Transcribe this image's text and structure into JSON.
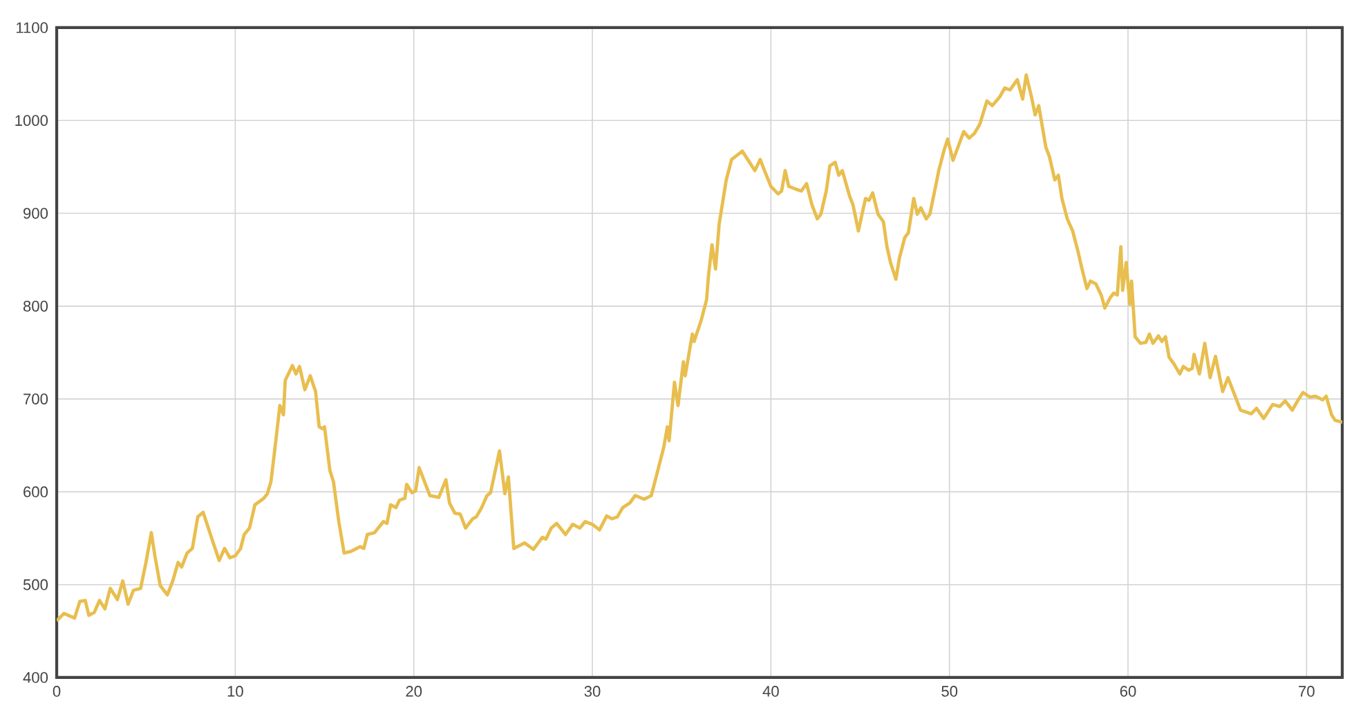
{
  "chart_data": {
    "type": "line",
    "color": "#e8be4f",
    "grid": true,
    "marker": "none",
    "line_style": "solid",
    "xlim": [
      0,
      72
    ],
    "ylim": [
      400,
      1100
    ],
    "xticks": [
      0,
      10,
      20,
      30,
      40,
      50,
      60,
      70
    ],
    "yticks": [
      400,
      500,
      600,
      700,
      800,
      900,
      1000,
      1100
    ],
    "x": [
      0.0,
      0.4,
      1.0,
      1.3,
      1.6,
      1.8,
      2.1,
      2.4,
      2.7,
      3.0,
      3.4,
      3.7,
      4.0,
      4.3,
      4.7,
      5.0,
      5.3,
      5.5,
      5.8,
      6.2,
      6.5,
      6.8,
      7.0,
      7.3,
      7.6,
      7.9,
      8.2,
      8.7,
      9.1,
      9.4,
      9.7,
      10.0,
      10.3,
      10.5,
      10.8,
      11.1,
      11.6,
      11.8,
      12.0,
      12.2,
      12.5,
      12.7,
      12.8,
      13.2,
      13.4,
      13.6,
      13.9,
      14.2,
      14.5,
      14.7,
      14.9,
      15.0,
      15.3,
      15.5,
      15.8,
      16.1,
      16.5,
      17.0,
      17.2,
      17.4,
      17.8,
      18.3,
      18.5,
      18.7,
      19.0,
      19.2,
      19.5,
      19.6,
      19.9,
      20.1,
      20.3,
      20.6,
      20.9,
      21.4,
      21.8,
      22.0,
      22.3,
      22.6,
      22.9,
      23.3,
      23.5,
      23.8,
      24.1,
      24.3,
      24.8,
      25.1,
      25.3,
      25.6,
      26.2,
      26.7,
      27.2,
      27.4,
      27.7,
      28.0,
      28.5,
      28.9,
      29.3,
      29.6,
      30.0,
      30.4,
      30.8,
      31.1,
      31.4,
      31.7,
      32.1,
      32.4,
      32.9,
      33.3,
      33.6,
      34.0,
      34.2,
      34.3,
      34.6,
      34.8,
      35.1,
      35.2,
      35.6,
      35.7,
      36.1,
      36.4,
      36.5,
      36.7,
      36.9,
      37.1,
      37.5,
      37.8,
      38.0,
      38.4,
      38.7,
      39.1,
      39.4,
      39.6,
      40.0,
      40.4,
      40.6,
      40.8,
      41.0,
      41.4,
      41.7,
      42.0,
      42.3,
      42.6,
      42.8,
      43.1,
      43.3,
      43.6,
      43.8,
      44.0,
      44.4,
      44.6,
      44.9,
      45.3,
      45.5,
      45.7,
      46.0,
      46.3,
      46.5,
      46.7,
      47.0,
      47.2,
      47.5,
      47.7,
      48.0,
      48.2,
      48.4,
      48.7,
      48.9,
      49.3,
      49.4,
      49.7,
      49.9,
      50.2,
      50.8,
      51.1,
      51.4,
      51.7,
      52.1,
      52.4,
      52.8,
      53.1,
      53.4,
      53.8,
      54.1,
      54.3,
      54.6,
      54.8,
      55.0,
      55.4,
      55.6,
      55.9,
      56.1,
      56.3,
      56.6,
      56.9,
      57.2,
      57.4,
      57.7,
      57.9,
      58.2,
      58.5,
      58.7,
      59.0,
      59.2,
      59.4,
      59.6,
      59.7,
      59.9,
      60.1,
      60.2,
      60.4,
      60.7,
      61.0,
      61.2,
      61.4,
      61.7,
      61.9,
      62.1,
      62.3,
      62.6,
      62.9,
      63.1,
      63.4,
      63.6,
      63.7,
      64.0,
      64.3,
      64.6,
      64.9,
      65.3,
      65.6,
      65.9,
      66.3,
      66.9,
      67.2,
      67.6,
      68.1,
      68.5,
      68.8,
      69.2,
      69.5,
      69.8,
      70.2,
      70.5,
      70.9,
      71.1,
      71.4,
      71.6,
      72.0
    ],
    "values": [
      461,
      469,
      464,
      482,
      483,
      467,
      470,
      483,
      474,
      496,
      484,
      504,
      479,
      494,
      496,
      524,
      556,
      531,
      499,
      489,
      504,
      524,
      519,
      534,
      539,
      573,
      578,
      549,
      526,
      539,
      529,
      531,
      539,
      554,
      561,
      586,
      593,
      598,
      611,
      643,
      693,
      683,
      720,
      736,
      727,
      735,
      710,
      725,
      708,
      670,
      668,
      670,
      623,
      611,
      568,
      534,
      536,
      541,
      539,
      554,
      556,
      568,
      566,
      586,
      583,
      591,
      593,
      608,
      599,
      601,
      626,
      611,
      596,
      594,
      613,
      588,
      577,
      576,
      561,
      571,
      573,
      583,
      596,
      599,
      644,
      598,
      616,
      539,
      545,
      538,
      551,
      549,
      561,
      566,
      554,
      565,
      561,
      568,
      565,
      559,
      574,
      571,
      573,
      583,
      588,
      596,
      592,
      596,
      618,
      648,
      670,
      655,
      718,
      693,
      740,
      725,
      770,
      762,
      785,
      807,
      832,
      866,
      840,
      888,
      936,
      958,
      961,
      967,
      958,
      946,
      958,
      948,
      929,
      921,
      924,
      946,
      929,
      926,
      924,
      932,
      909,
      894,
      899,
      924,
      951,
      955,
      941,
      946,
      919,
      909,
      881,
      916,
      914,
      922,
      899,
      891,
      864,
      847,
      829,
      852,
      874,
      879,
      916,
      899,
      906,
      894,
      899,
      936,
      946,
      968,
      980,
      957,
      988,
      981,
      986,
      996,
      1021,
      1016,
      1025,
      1035,
      1033,
      1044,
      1023,
      1049,
      1025,
      1006,
      1016,
      971,
      961,
      936,
      941,
      916,
      894,
      881,
      859,
      842,
      819,
      827,
      824,
      812,
      798,
      809,
      814,
      812,
      864,
      817,
      847,
      802,
      827,
      767,
      760,
      761,
      770,
      760,
      768,
      762,
      767,
      745,
      737,
      727,
      735,
      731,
      733,
      748,
      727,
      760,
      723,
      746,
      708,
      723,
      708,
      688,
      684,
      690,
      679,
      694,
      692,
      698,
      688,
      698,
      707,
      702,
      703,
      699,
      703,
      683,
      677,
      675
    ]
  }
}
